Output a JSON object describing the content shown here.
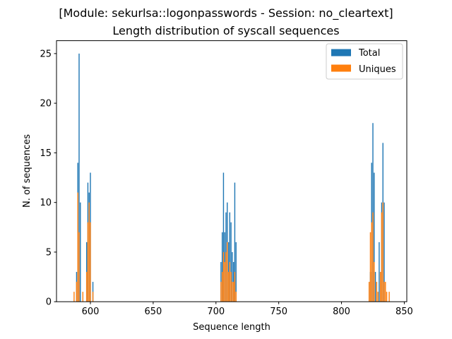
{
  "chart_data": {
    "type": "bar",
    "title_line1": "[Module: sekurlsa::logonpasswords - Session: no_cleartext]",
    "title_line2": "Length distribution of syscall sequences",
    "xlabel": "Sequence length",
    "ylabel": "N. of sequences",
    "xlim": [
      573,
      852
    ],
    "ylim": [
      0,
      26.3
    ],
    "xticks": [
      600,
      650,
      700,
      750,
      800,
      850
    ],
    "yticks": [
      0,
      5,
      10,
      15,
      20,
      25
    ],
    "grid": false,
    "legend_position": "top-right",
    "series": [
      {
        "name": "Total",
        "color": "#1f77b4",
        "points": [
          {
            "x": 589,
            "y": 3
          },
          {
            "x": 590,
            "y": 14
          },
          {
            "x": 591,
            "y": 25
          },
          {
            "x": 592,
            "y": 10
          },
          {
            "x": 597,
            "y": 6
          },
          {
            "x": 598,
            "y": 12
          },
          {
            "x": 599,
            "y": 11
          },
          {
            "x": 600,
            "y": 13
          },
          {
            "x": 602,
            "y": 2
          },
          {
            "x": 704,
            "y": 4
          },
          {
            "x": 705,
            "y": 7
          },
          {
            "x": 706,
            "y": 13
          },
          {
            "x": 707,
            "y": 7
          },
          {
            "x": 708,
            "y": 9
          },
          {
            "x": 709,
            "y": 10
          },
          {
            "x": 710,
            "y": 6
          },
          {
            "x": 711,
            "y": 9
          },
          {
            "x": 712,
            "y": 8
          },
          {
            "x": 713,
            "y": 5
          },
          {
            "x": 714,
            "y": 4
          },
          {
            "x": 715,
            "y": 12
          },
          {
            "x": 716,
            "y": 6
          },
          {
            "x": 823,
            "y": 3
          },
          {
            "x": 824,
            "y": 14
          },
          {
            "x": 825,
            "y": 18
          },
          {
            "x": 826,
            "y": 13
          },
          {
            "x": 827,
            "y": 3
          },
          {
            "x": 830,
            "y": 6
          },
          {
            "x": 832,
            "y": 10
          },
          {
            "x": 833,
            "y": 16
          },
          {
            "x": 834,
            "y": 10
          }
        ]
      },
      {
        "name": "Uniques",
        "color": "#ff7f0e",
        "points": [
          {
            "x": 587,
            "y": 1
          },
          {
            "x": 589,
            "y": 2
          },
          {
            "x": 590,
            "y": 11
          },
          {
            "x": 591,
            "y": 7
          },
          {
            "x": 594,
            "y": 1
          },
          {
            "x": 597,
            "y": 3
          },
          {
            "x": 598,
            "y": 8
          },
          {
            "x": 599,
            "y": 10
          },
          {
            "x": 600,
            "y": 8
          },
          {
            "x": 602,
            "y": 1
          },
          {
            "x": 704,
            "y": 2
          },
          {
            "x": 705,
            "y": 3
          },
          {
            "x": 706,
            "y": 5
          },
          {
            "x": 707,
            "y": 4
          },
          {
            "x": 708,
            "y": 5
          },
          {
            "x": 709,
            "y": 6
          },
          {
            "x": 710,
            "y": 3
          },
          {
            "x": 711,
            "y": 4
          },
          {
            "x": 712,
            "y": 3
          },
          {
            "x": 713,
            "y": 2
          },
          {
            "x": 714,
            "y": 2
          },
          {
            "x": 715,
            "y": 3
          },
          {
            "x": 716,
            "y": 1
          },
          {
            "x": 822,
            "y": 2
          },
          {
            "x": 823,
            "y": 7
          },
          {
            "x": 824,
            "y": 8
          },
          {
            "x": 825,
            "y": 9
          },
          {
            "x": 826,
            "y": 4
          },
          {
            "x": 828,
            "y": 2
          },
          {
            "x": 829,
            "y": 1
          },
          {
            "x": 831,
            "y": 3
          },
          {
            "x": 832,
            "y": 9
          },
          {
            "x": 833,
            "y": 10
          },
          {
            "x": 834,
            "y": 2
          },
          {
            "x": 835,
            "y": 2
          },
          {
            "x": 836,
            "y": 1
          },
          {
            "x": 838,
            "y": 1
          }
        ]
      }
    ]
  }
}
